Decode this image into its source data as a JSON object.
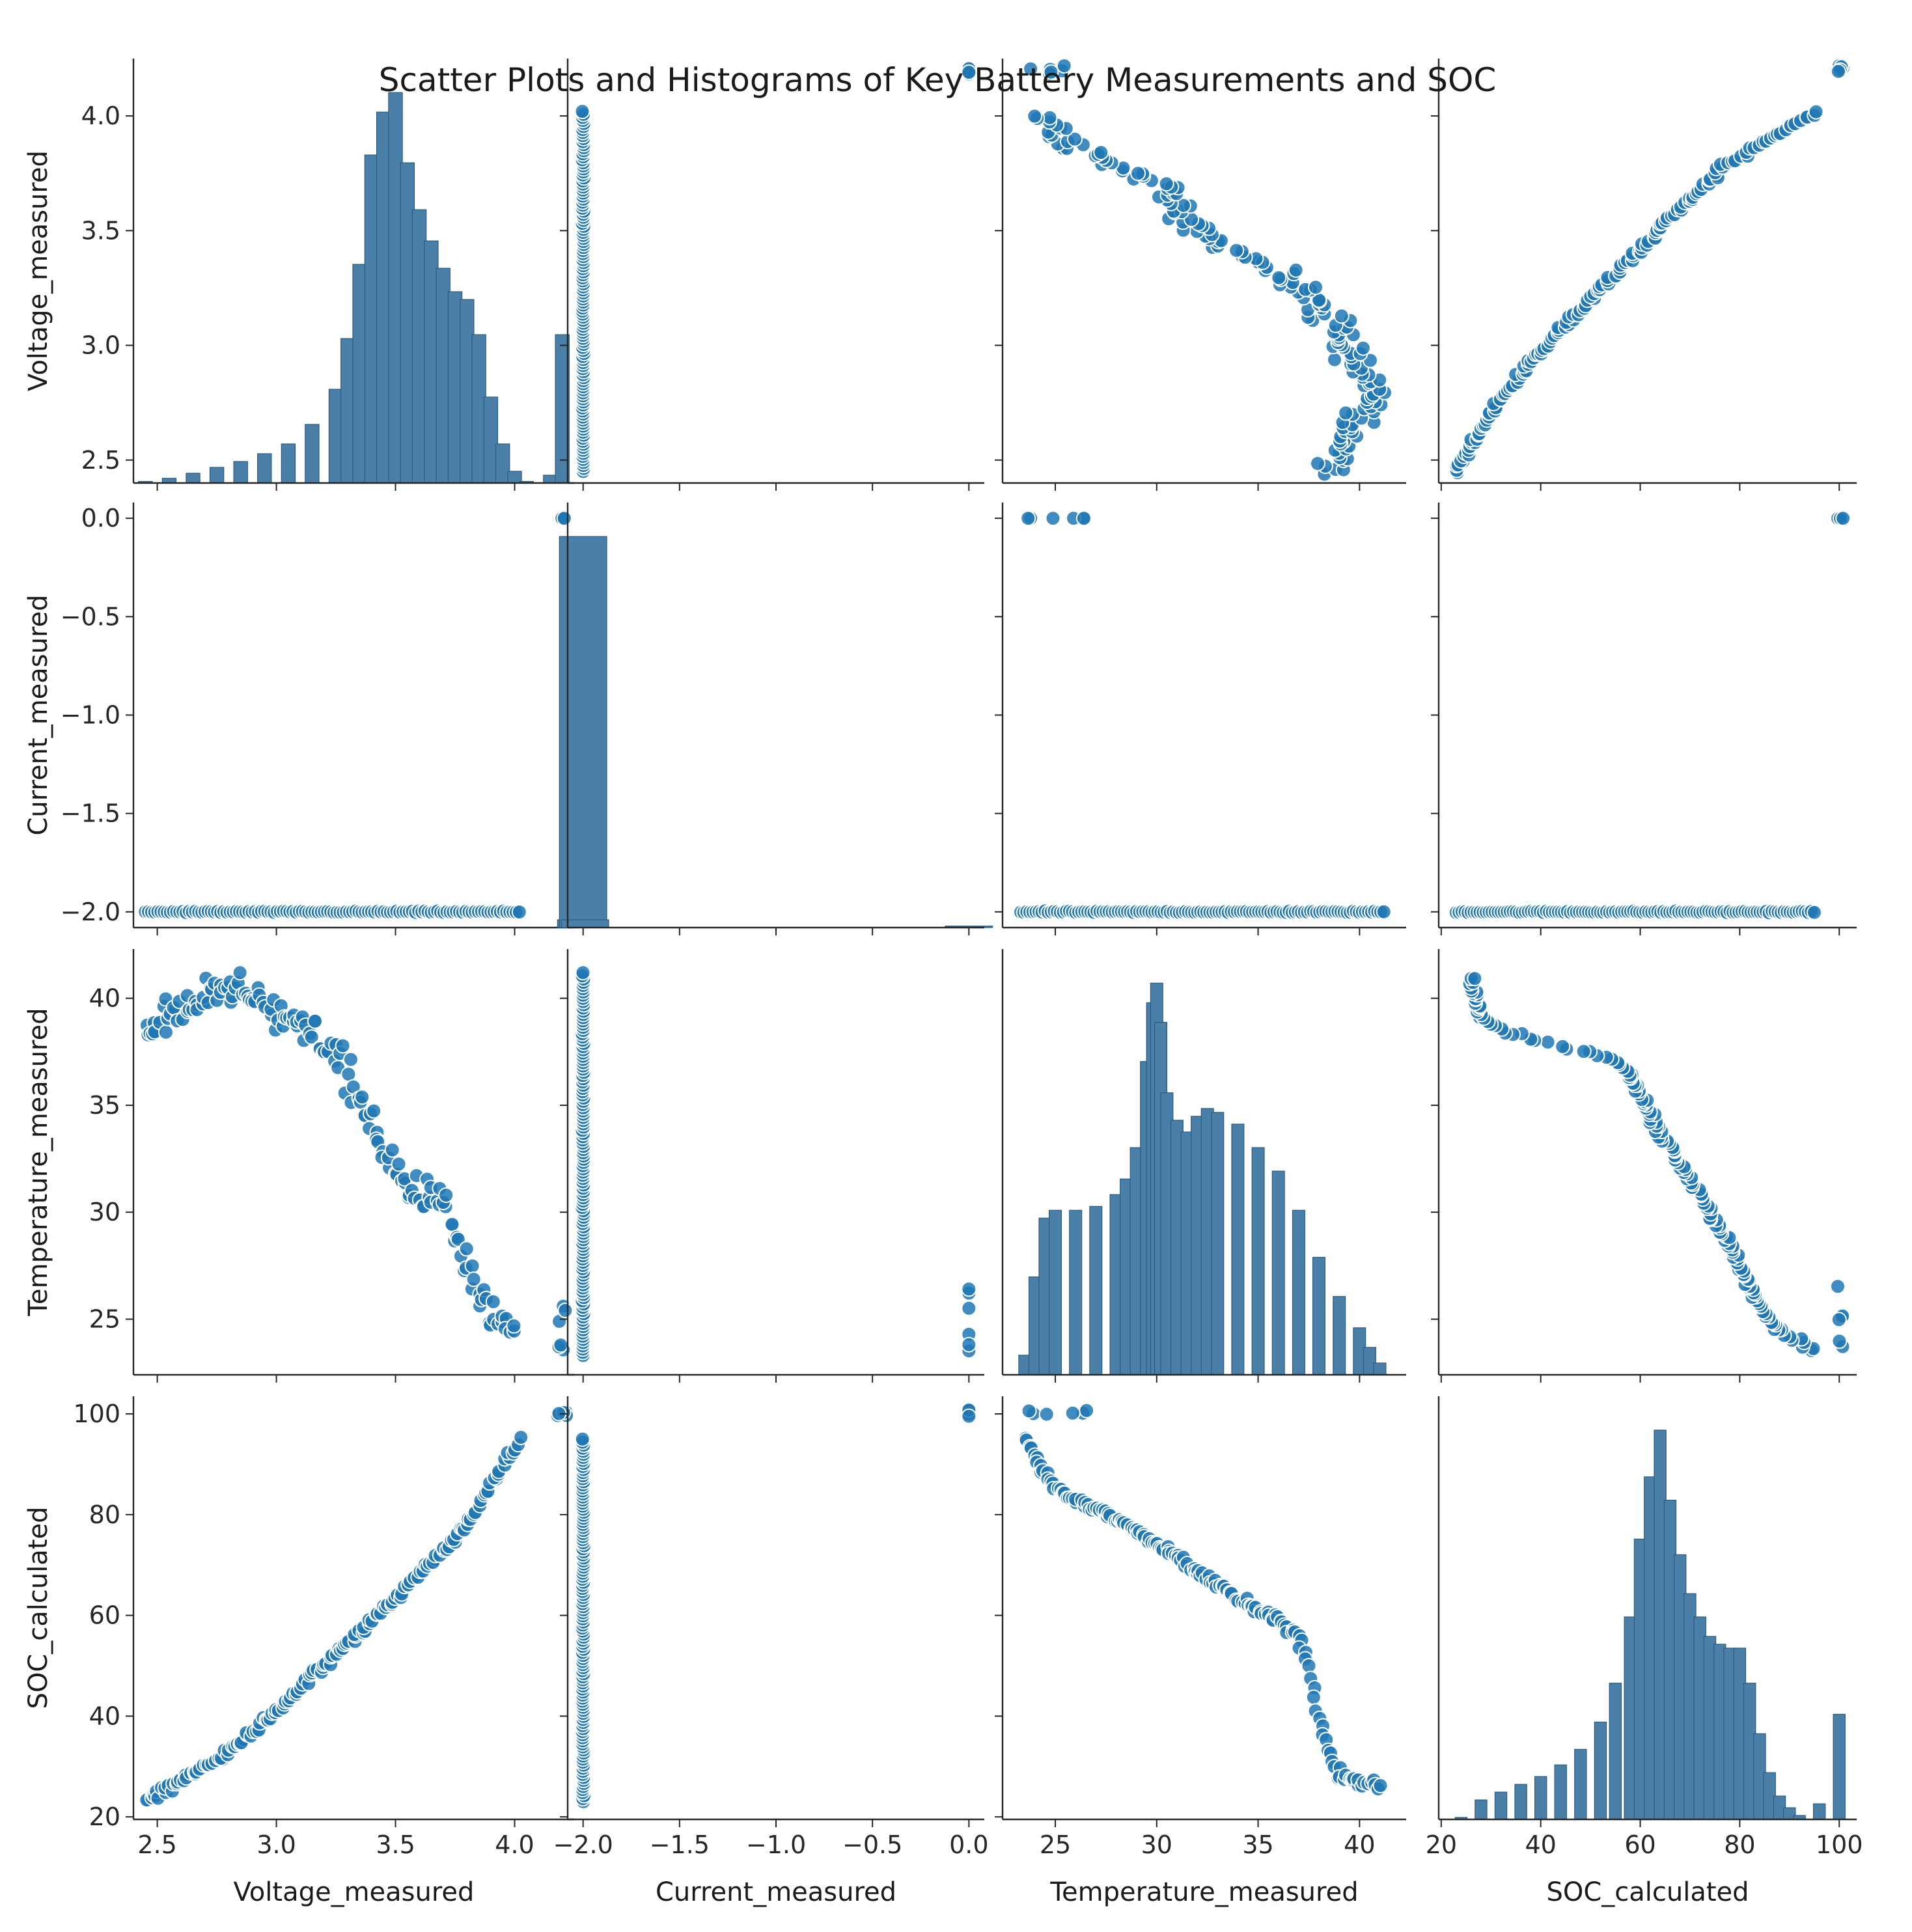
{
  "chart_data": {
    "type": "scatter",
    "subtype": "pairplot",
    "title": "Scatter Plots and Histograms of Key Battery Measurements and SOC",
    "variables": [
      "Voltage_measured",
      "Current_measured",
      "Temperature_measured",
      "SOC_calculated"
    ],
    "axes": {
      "Voltage_measured": {
        "range": [
          2.4,
          4.25
        ],
        "ticks": [
          2.5,
          3.0,
          3.5,
          4.0
        ],
        "tick_labels": [
          "2.5",
          "3.0",
          "3.5",
          "4.0"
        ]
      },
      "Current_measured": {
        "range": [
          -2.08,
          0.08
        ],
        "ticks": [
          -2.0,
          -1.5,
          -1.0,
          -0.5,
          0.0
        ],
        "tick_labels": [
          "−2.0",
          "−1.5",
          "−1.0",
          "−0.5",
          "0.0"
        ]
      },
      "Temperature_measured": {
        "range": [
          22.4,
          42.3
        ],
        "ticks": [
          25,
          30,
          35,
          40
        ],
        "tick_labels": [
          "25",
          "30",
          "35",
          "40"
        ]
      },
      "SOC_calculated": {
        "range": [
          19.5,
          103.5
        ],
        "ticks": [
          20,
          40,
          60,
          80,
          100
        ],
        "tick_labels": [
          "20",
          "40",
          "60",
          "80",
          "100"
        ]
      }
    },
    "point_color": "#1f77b4",
    "point_edge_color": "#ffffff",
    "histogram_color": "#4a7fa8",
    "histogram_edge_color": "#2d5a7f",
    "diagonal": "histogram",
    "histograms": {
      "Voltage_measured": {
        "x": [
          2.45,
          2.55,
          2.65,
          2.75,
          2.85,
          2.95,
          3.05,
          3.15,
          3.25,
          3.3,
          3.35,
          3.4,
          3.45,
          3.5,
          3.55,
          3.6,
          3.65,
          3.7,
          3.75,
          3.8,
          3.85,
          3.9,
          3.95,
          4.0,
          4.05,
          4.1,
          4.15,
          4.2,
          4.25
        ],
        "y": [
          0.004,
          0.012,
          0.025,
          0.04,
          0.055,
          0.075,
          0.1,
          0.15,
          0.24,
          0.37,
          0.56,
          0.84,
          0.95,
          1.0,
          0.82,
          0.7,
          0.62,
          0.55,
          0.49,
          0.47,
          0.38,
          0.22,
          0.1,
          0.03,
          0.004,
          0.0,
          0.02,
          0.38,
          0.0
        ]
      },
      "Current_measured": {
        "x": [
          -2.02,
          -2.01,
          -2.0,
          -1.99,
          -1.98,
          -0.01,
          0.0,
          0.01
        ],
        "y": [
          0.0,
          0.02,
          1.0,
          0.02,
          0.0,
          0.0,
          0.004,
          0.0
        ]
      },
      "Temperature_measured": {
        "x": [
          23.0,
          23.5,
          24.0,
          24.5,
          25.0,
          26.0,
          27.0,
          28.0,
          28.5,
          29.0,
          29.5,
          29.8,
          30.0,
          30.2,
          30.5,
          31.0,
          31.5,
          32.0,
          32.5,
          33.0,
          34.0,
          35.0,
          36.0,
          37.0,
          38.0,
          39.0,
          40.0,
          40.5,
          41.0,
          41.3
        ],
        "y": [
          0.0,
          0.05,
          0.25,
          0.4,
          0.42,
          0.42,
          0.43,
          0.46,
          0.5,
          0.58,
          0.8,
          0.95,
          1.0,
          0.9,
          0.72,
          0.65,
          0.62,
          0.66,
          0.68,
          0.67,
          0.64,
          0.58,
          0.52,
          0.42,
          0.3,
          0.2,
          0.12,
          0.07,
          0.03,
          0.0
        ]
      },
      "SOC_calculated": {
        "x": [
          24,
          28,
          32,
          36,
          40,
          44,
          48,
          52,
          55,
          58,
          60,
          62,
          64,
          66,
          68,
          70,
          72,
          74,
          76,
          78,
          80,
          82,
          84,
          86,
          88,
          90,
          92,
          94,
          96,
          98,
          100,
          102
        ],
        "y": [
          0.005,
          0.05,
          0.07,
          0.09,
          0.11,
          0.14,
          0.18,
          0.25,
          0.35,
          0.52,
          0.72,
          0.88,
          1.0,
          0.82,
          0.68,
          0.58,
          0.52,
          0.47,
          0.45,
          0.44,
          0.44,
          0.35,
          0.22,
          0.12,
          0.06,
          0.03,
          0.01,
          0.0,
          0.04,
          0.0,
          0.27,
          0.0
        ]
      }
    },
    "relationships": {
      "Voltage_measured__Temperature_measured": [
        [
          2.45,
          38.5
        ],
        [
          2.6,
          39.5
        ],
        [
          2.75,
          40.3
        ],
        [
          2.9,
          40.0
        ],
        [
          3.0,
          39.5
        ],
        [
          3.1,
          38.9
        ],
        [
          3.2,
          38.0
        ],
        [
          3.3,
          36.5
        ],
        [
          3.4,
          34.0
        ],
        [
          3.5,
          32.0
        ],
        [
          3.6,
          31.0
        ],
        [
          3.7,
          30.5
        ],
        [
          3.75,
          29.0
        ],
        [
          3.8,
          27.5
        ],
        [
          3.85,
          26.5
        ],
        [
          3.9,
          25.5
        ],
        [
          3.95,
          24.8
        ],
        [
          4.0,
          24.3
        ]
      ],
      "Voltage_measured__SOC_calculated": [
        [
          2.45,
          23
        ],
        [
          2.6,
          27
        ],
        [
          2.8,
          33
        ],
        [
          3.0,
          41
        ],
        [
          3.2,
          50
        ],
        [
          3.4,
          59
        ],
        [
          3.6,
          68
        ],
        [
          3.8,
          78
        ],
        [
          3.95,
          90
        ],
        [
          4.02,
          95
        ]
      ],
      "Temperature_measured__SOC_calculated": [
        [
          23.5,
          95
        ],
        [
          24.5,
          88
        ],
        [
          25.5,
          84
        ],
        [
          27.0,
          81
        ],
        [
          28.5,
          78
        ],
        [
          30.0,
          74
        ],
        [
          31.5,
          70
        ],
        [
          33.0,
          66
        ],
        [
          34.5,
          62
        ],
        [
          36.0,
          59
        ],
        [
          37.0,
          56
        ],
        [
          37.5,
          50
        ],
        [
          38.0,
          40
        ],
        [
          38.5,
          33
        ],
        [
          39.0,
          28
        ],
        [
          40.0,
          27
        ],
        [
          41.0,
          26
        ]
      ],
      "clusters": {
        "Voltage_measured_at_rest": [
          4.18,
          4.22
        ],
        "Current_measured_levels": [
          -2.0,
          0.0
        ],
        "Temperature_measured_at_rest": [
          23.5,
          26.6
        ],
        "SOC_calculated_at_rest": [
          99.5,
          100.8
        ]
      }
    }
  }
}
